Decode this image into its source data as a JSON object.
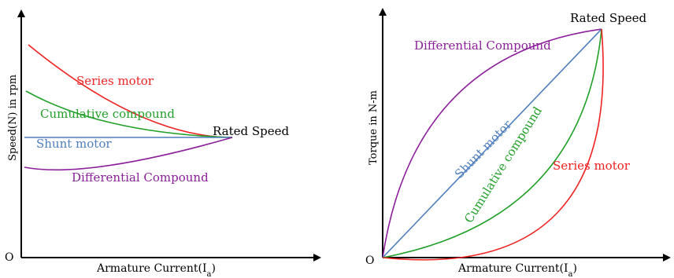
{
  "colors": {
    "series": "#ee2222",
    "cumulative": "#22a02a",
    "shunt": "#4f7fbd",
    "differential": "#8b1f9a",
    "axis": "#000000"
  },
  "left_plot": {
    "origin_label": "O",
    "x_axis_label": "Armature Current(I",
    "x_axis_sub": "a",
    "x_axis_close": ")",
    "y_axis_label": "Speed(N) in rpm",
    "rated_label": "Rated Speed",
    "curves": {
      "series": "Series motor",
      "cumulative": "Cumulative compound",
      "shunt": "Shunt motor",
      "differential": "Differential Compound"
    }
  },
  "right_plot": {
    "origin_label": "O",
    "x_axis_label": "Armature Current(I",
    "x_axis_sub": "a",
    "x_axis_close": ")",
    "y_axis_label": "Torque  in N-m",
    "rated_label": "Rated Speed",
    "curves": {
      "differential": "Differential Compound",
      "shunt": "Shunt motor",
      "cumulative": "Cumulative compound",
      "series": "Series motor"
    }
  }
}
